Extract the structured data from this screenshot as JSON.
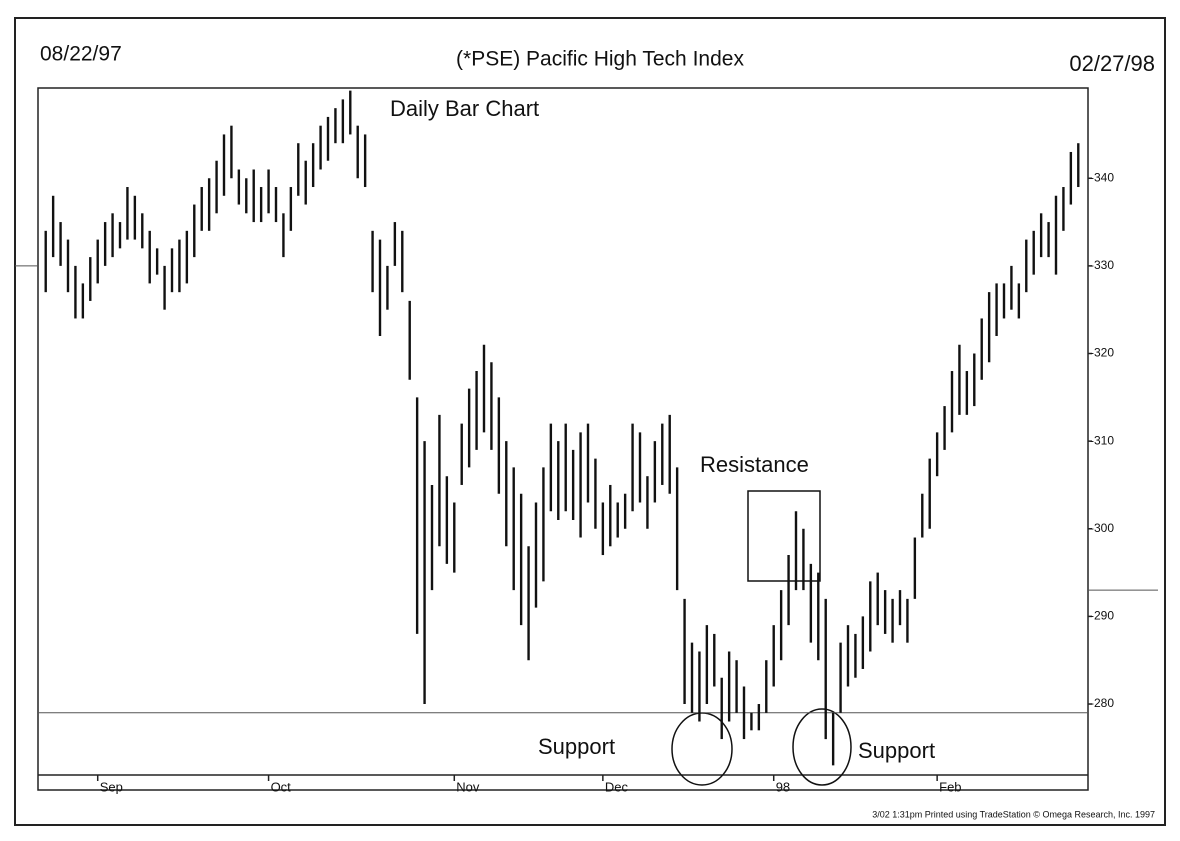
{
  "chart_data": {
    "type": "ohlc",
    "title": "(*PSE) Pacific High Tech Index",
    "start_date": "08/22/97",
    "end_date": "02/27/98",
    "subtitle": "Daily Bar Chart",
    "annotations": [
      "Resistance",
      "Support",
      "Support"
    ],
    "footer": "3/02 1:31pm Printed using TradeStation © Omega Research, Inc. 1997",
    "color": "#111111",
    "highs": [
      334,
      338,
      335,
      333,
      330,
      328,
      331,
      333,
      335,
      336,
      335,
      339,
      338,
      336,
      334,
      332,
      330,
      332,
      333,
      334,
      337,
      339,
      340,
      342,
      345,
      346,
      341,
      340,
      341,
      339,
      341,
      339,
      336,
      339,
      344,
      342,
      344,
      346,
      347,
      348,
      349,
      350,
      346,
      345,
      334,
      333,
      330,
      335,
      334,
      326,
      315,
      310,
      305,
      313,
      306,
      303,
      312,
      316,
      318,
      321,
      319,
      315,
      310,
      307,
      304,
      298,
      303,
      307,
      312,
      310,
      312,
      309,
      311,
      312,
      308,
      303,
      305,
      303,
      304,
      312,
      311,
      306,
      310,
      312,
      313,
      307,
      292,
      287,
      286,
      289,
      288,
      283,
      286,
      285,
      282,
      279,
      280,
      285,
      289,
      293,
      297,
      302,
      300,
      296,
      295,
      292,
      279,
      287,
      289,
      288,
      290,
      294,
      295,
      293,
      292,
      293,
      292,
      299,
      304,
      308,
      311,
      314,
      318,
      321,
      318,
      320,
      324,
      327,
      328,
      328,
      330,
      328,
      333,
      334,
      336,
      335,
      338,
      339,
      343,
      344
    ],
    "lows": [
      327,
      331,
      330,
      327,
      324,
      324,
      326,
      328,
      330,
      331,
      332,
      333,
      333,
      332,
      328,
      329,
      325,
      327,
      327,
      328,
      331,
      334,
      334,
      336,
      338,
      340,
      337,
      336,
      335,
      335,
      336,
      335,
      331,
      334,
      338,
      337,
      339,
      341,
      342,
      344,
      344,
      345,
      340,
      339,
      327,
      322,
      325,
      330,
      327,
      317,
      288,
      280,
      293,
      298,
      296,
      295,
      305,
      307,
      309,
      311,
      309,
      304,
      298,
      293,
      289,
      285,
      291,
      294,
      302,
      301,
      302,
      301,
      299,
      303,
      300,
      297,
      298,
      299,
      300,
      302,
      303,
      300,
      303,
      305,
      304,
      293,
      280,
      279,
      278,
      280,
      282,
      276,
      278,
      279,
      276,
      277,
      277,
      279,
      282,
      285,
      289,
      293,
      293,
      287,
      285,
      276,
      273,
      279,
      282,
      283,
      284,
      286,
      289,
      288,
      287,
      289,
      287,
      292,
      299,
      300,
      306,
      309,
      311,
      313,
      313,
      314,
      317,
      319,
      322,
      324,
      325,
      324,
      327,
      329,
      331,
      331,
      329,
      334,
      337,
      339
    ],
    "xticks": [
      {
        "value": 7,
        "label": "Sep"
      },
      {
        "value": 30,
        "label": "Oct"
      },
      {
        "value": 55,
        "label": "Nov"
      },
      {
        "value": 75,
        "label": "Dec"
      },
      {
        "value": 98,
        "label": "98"
      },
      {
        "value": 120,
        "label": "Feb"
      }
    ],
    "ylim": [
      271.9,
      350.3
    ],
    "yticks": [
      {
        "value": 280,
        "label": "-280"
      },
      {
        "value": 290,
        "label": "-290"
      },
      {
        "value": 300,
        "label": "-300"
      },
      {
        "value": 310,
        "label": "-310"
      },
      {
        "value": 320,
        "label": "-320"
      },
      {
        "value": 330,
        "label": "-330"
      },
      {
        "value": 340,
        "label": "-340"
      }
    ],
    "reference_lines": [
      279,
      293,
      330
    ]
  }
}
